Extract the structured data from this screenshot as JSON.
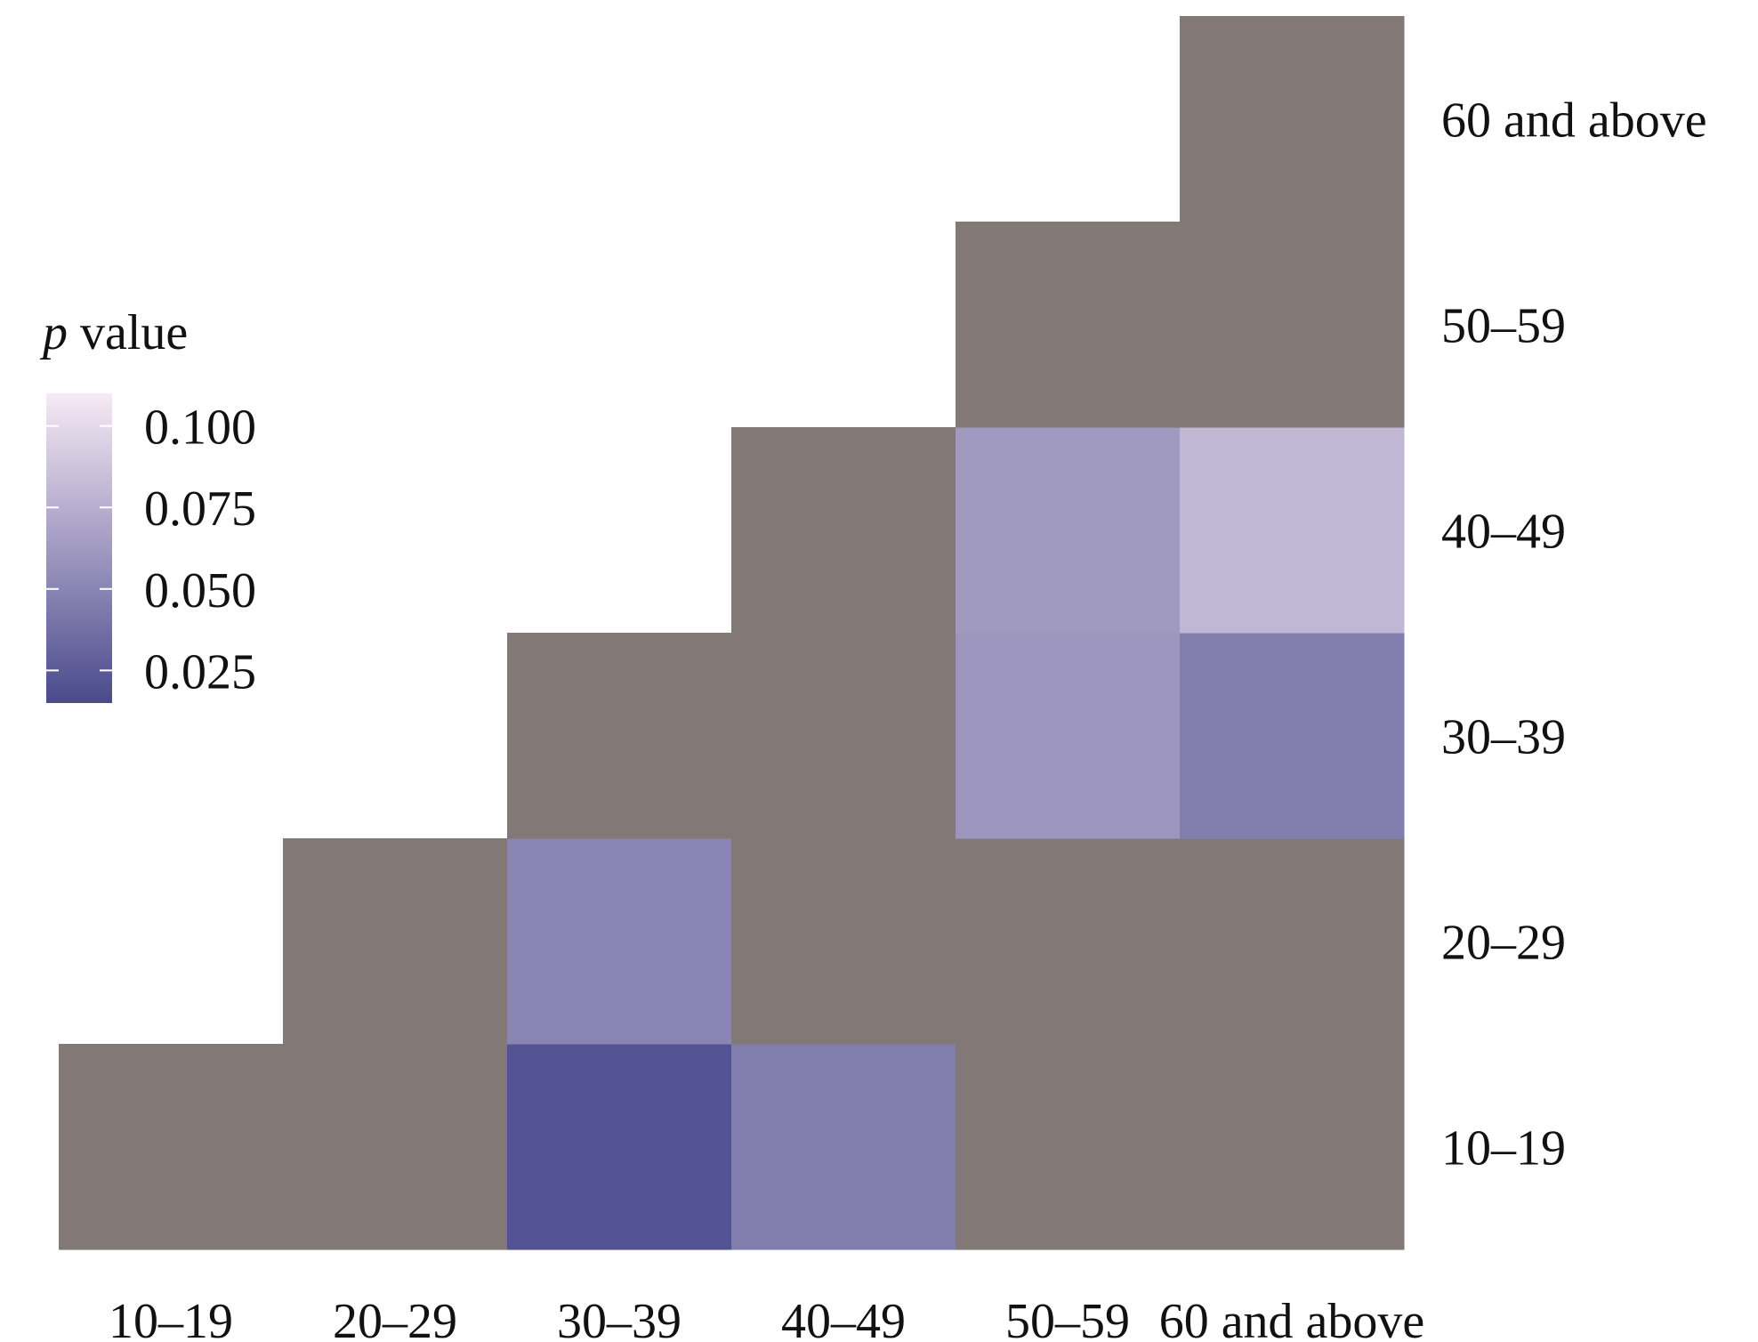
{
  "chart_data": {
    "type": "heatmap",
    "title": "",
    "xlabel": "",
    "ylabel": "",
    "x_categories": [
      "10–19",
      "20–29",
      "30–39",
      "40–49",
      "50–59",
      "60 and above"
    ],
    "y_categories": [
      "10–19",
      "20–29",
      "30–39",
      "40–49",
      "50–59",
      "60 and above"
    ],
    "y_axis_side": "right",
    "legend": {
      "title_italic": "p",
      "title_rest": " value",
      "position": "left",
      "ticks": [
        0.1,
        0.075,
        0.05,
        0.025
      ],
      "tick_labels": [
        "0.100",
        "0.075",
        "0.050",
        "0.025"
      ],
      "range": [
        0.015,
        0.11
      ],
      "low_color": "#4a4a8c",
      "high_color": "#f7eaf5"
    },
    "not_significant_color": "#827875",
    "cells": [
      {
        "x": "10–19",
        "y": "10–19",
        "p": null
      },
      {
        "x": "20–29",
        "y": "10–19",
        "p": null
      },
      {
        "x": "30–39",
        "y": "10–19",
        "p": 0.02
      },
      {
        "x": "40–49",
        "y": "10–19",
        "p": 0.045
      },
      {
        "x": "50–59",
        "y": "10–19",
        "p": null
      },
      {
        "x": "60 and above",
        "y": "10–19",
        "p": null
      },
      {
        "x": "20–29",
        "y": "20–29",
        "p": null
      },
      {
        "x": "30–39",
        "y": "20–29",
        "p": 0.05
      },
      {
        "x": "40–49",
        "y": "20–29",
        "p": null
      },
      {
        "x": "50–59",
        "y": "20–29",
        "p": null
      },
      {
        "x": "60 and above",
        "y": "20–29",
        "p": null
      },
      {
        "x": "30–39",
        "y": "30–39",
        "p": null
      },
      {
        "x": "40–49",
        "y": "30–39",
        "p": null
      },
      {
        "x": "50–59",
        "y": "30–39",
        "p": 0.06
      },
      {
        "x": "60 and above",
        "y": "30–39",
        "p": 0.045
      },
      {
        "x": "40–49",
        "y": "40–49",
        "p": null
      },
      {
        "x": "50–59",
        "y": "40–49",
        "p": 0.062
      },
      {
        "x": "60 and above",
        "y": "40–49",
        "p": 0.08
      },
      {
        "x": "50–59",
        "y": "50–59",
        "p": null
      },
      {
        "x": "60 and above",
        "y": "50–59",
        "p": null
      },
      {
        "x": "60 and above",
        "y": "60 and above",
        "p": null
      }
    ]
  }
}
